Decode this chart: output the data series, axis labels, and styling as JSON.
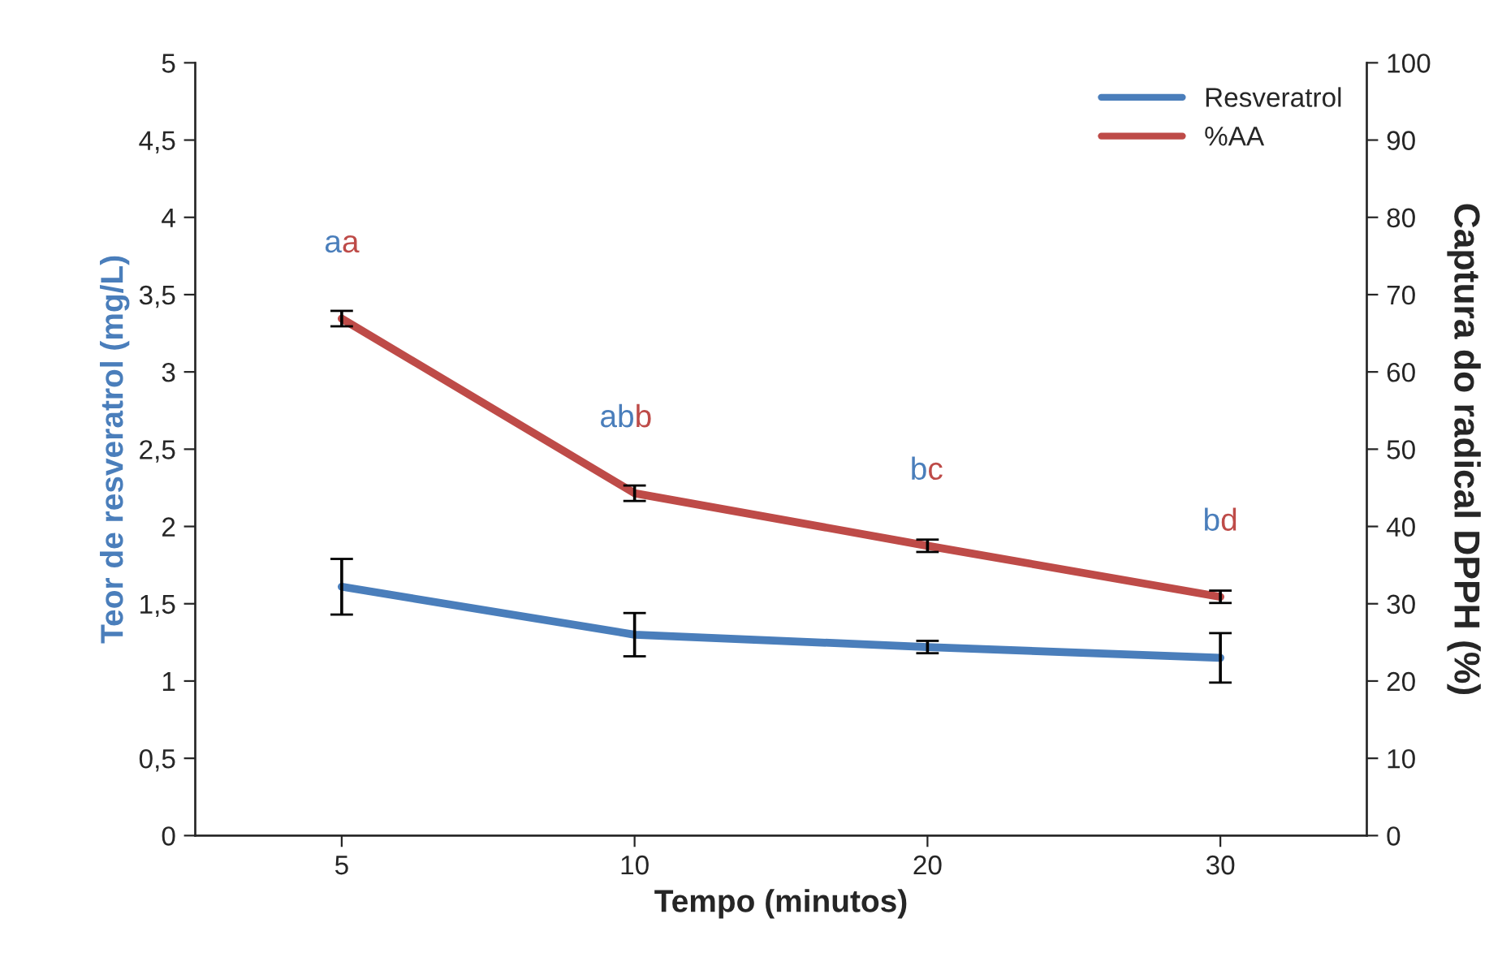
{
  "chart_data": {
    "type": "line",
    "xlabel": "Tempo (minutos)",
    "ylabel": "Teor de resveratrol (mg/L)",
    "y2label": "Captura do radical DPPH (%)",
    "categories": [
      "5",
      "10",
      "20",
      "30"
    ],
    "series": [
      {
        "name": "Resveratrol",
        "color": "#4a7ebb",
        "values": [
          1.61,
          1.3,
          1.22,
          1.15
        ],
        "errors": [
          0.18,
          0.14,
          0.04,
          0.16
        ]
      },
      {
        "name": "%AA",
        "color": "#be4b48",
        "axis": "y2",
        "values": [
          66.9,
          44.3,
          37.5,
          30.9
        ],
        "errors": [
          1,
          1,
          0.8,
          0.8
        ],
        "value_labels": [
          "a",
          "b",
          "c",
          "d"
        ]
      }
    ],
    "annotations": [
      "a",
      "ab",
      "b",
      "b"
    ],
    "ylim": [
      0,
      5
    ],
    "yticks": [
      0,
      {
        "value": 0.5,
        "label": "0,5"
      },
      1,
      {
        "value": 1.5,
        "label": "1,5"
      },
      2,
      {
        "value": 2.5,
        "label": "2,5"
      },
      3,
      {
        "value": 3.5,
        "label": "3,5"
      },
      4,
      {
        "value": 4.5,
        "label": "4,5"
      },
      5
    ],
    "y2lim": [
      0,
      100
    ],
    "y2ticks": [
      0,
      10,
      20,
      30,
      40,
      50,
      60,
      70,
      80,
      90,
      100
    ],
    "legend": "top right",
    "grid": false,
    "marker": "none",
    "line_style": "solid"
  }
}
